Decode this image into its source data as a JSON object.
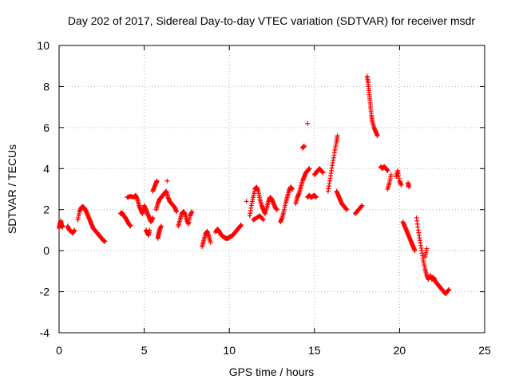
{
  "chart_data": {
    "type": "scatter",
    "title": "Day 202 of 2017, Sidereal Day-to-day VTEC variation (SDTVAR) for receiver msdr",
    "xlabel": "GPS time / hours",
    "ylabel": "SDTVAR / TECUs",
    "xlim": [
      0,
      25
    ],
    "ylim": [
      -4,
      10
    ],
    "xticks": [
      0,
      5,
      10,
      15,
      20,
      25
    ],
    "yticks": [
      -4,
      -2,
      0,
      2,
      4,
      6,
      8,
      10
    ],
    "xtick_labels": [
      "0",
      "5",
      "10",
      "15",
      "20",
      "25"
    ],
    "ytick_labels": [
      "-4",
      "-2",
      "0",
      "2",
      "4",
      "6",
      "8",
      "10"
    ],
    "grid": true,
    "marker": "+",
    "series_color": "#ff0000",
    "segments": [
      {
        "name": "seg1",
        "points": [
          [
            0.0,
            1.1
          ],
          [
            0.05,
            1.3
          ],
          [
            0.1,
            1.45
          ],
          [
            0.15,
            1.25
          ],
          [
            0.2,
            1.15
          ]
        ]
      },
      {
        "name": "seg2",
        "points": [
          [
            0.5,
            1.2
          ],
          [
            0.6,
            1.0
          ],
          [
            0.7,
            0.95
          ],
          [
            0.8,
            0.85
          ],
          [
            0.9,
            1.0
          ]
        ]
      },
      {
        "name": "seg3",
        "points": [
          [
            1.1,
            1.5
          ],
          [
            1.2,
            1.9
          ],
          [
            1.3,
            2.1
          ],
          [
            1.4,
            2.15
          ],
          [
            1.5,
            2.05
          ],
          [
            1.6,
            1.9
          ],
          [
            1.7,
            1.7
          ],
          [
            1.8,
            1.5
          ],
          [
            1.9,
            1.3
          ],
          [
            2.0,
            1.1
          ],
          [
            2.1,
            1.0
          ],
          [
            2.2,
            0.9
          ],
          [
            2.3,
            0.8
          ],
          [
            2.4,
            0.7
          ],
          [
            2.5,
            0.6
          ],
          [
            2.6,
            0.5
          ],
          [
            2.7,
            0.45
          ]
        ]
      },
      {
        "name": "seg4",
        "points": [
          [
            3.6,
            1.8
          ],
          [
            3.7,
            1.85
          ],
          [
            3.8,
            1.7
          ],
          [
            3.9,
            1.6
          ],
          [
            4.0,
            1.45
          ],
          [
            4.1,
            1.3
          ],
          [
            4.2,
            1.2
          ]
        ]
      },
      {
        "name": "seg5",
        "points": [
          [
            4.0,
            2.6
          ],
          [
            4.2,
            2.65
          ],
          [
            4.4,
            2.6
          ],
          [
            4.5,
            2.7
          ],
          [
            4.6,
            2.5
          ],
          [
            4.7,
            2.2
          ],
          [
            4.8,
            2.0
          ],
          [
            4.9,
            1.8
          ],
          [
            5.0,
            2.2
          ],
          [
            5.1,
            2.0
          ],
          [
            5.2,
            1.8
          ],
          [
            5.3,
            1.6
          ],
          [
            5.4,
            1.4
          ],
          [
            5.5,
            1.6
          ]
        ]
      },
      {
        "name": "seg6",
        "points": [
          [
            5.1,
            1.0
          ],
          [
            5.2,
            0.85
          ],
          [
            5.25,
            0.75
          ],
          [
            5.3,
            1.0
          ]
        ]
      },
      {
        "name": "seg7",
        "points": [
          [
            5.5,
            2.9
          ],
          [
            5.6,
            3.1
          ],
          [
            5.7,
            3.3
          ],
          [
            5.75,
            3.4
          ]
        ]
      },
      {
        "name": "seg8",
        "points": [
          [
            5.8,
            0.6
          ],
          [
            5.85,
            0.8
          ],
          [
            5.9,
            1.0
          ],
          [
            6.0,
            1.2
          ]
        ]
      },
      {
        "name": "seg9",
        "points": [
          [
            5.7,
            2.0
          ],
          [
            5.8,
            2.3
          ],
          [
            5.9,
            2.5
          ],
          [
            6.0,
            2.6
          ],
          [
            6.1,
            2.7
          ],
          [
            6.2,
            2.8
          ],
          [
            6.3,
            2.9
          ],
          [
            6.4,
            2.6
          ],
          [
            6.5,
            2.4
          ],
          [
            6.6,
            2.3
          ],
          [
            6.7,
            2.2
          ],
          [
            6.8,
            2.1
          ],
          [
            6.9,
            1.9
          ]
        ]
      },
      {
        "name": "seg10",
        "points": [
          [
            6.35,
            3.4
          ]
        ]
      },
      {
        "name": "seg11",
        "points": [
          [
            7.0,
            1.2
          ],
          [
            7.1,
            1.5
          ],
          [
            7.2,
            1.8
          ],
          [
            7.3,
            1.9
          ],
          [
            7.4,
            1.8
          ],
          [
            7.5,
            1.5
          ],
          [
            7.6,
            1.3
          ],
          [
            7.7,
            1.7
          ],
          [
            7.8,
            1.9
          ]
        ]
      },
      {
        "name": "seg12",
        "points": [
          [
            8.4,
            0.2
          ],
          [
            8.5,
            0.5
          ],
          [
            8.6,
            0.8
          ],
          [
            8.7,
            0.95
          ],
          [
            8.8,
            0.7
          ],
          [
            8.9,
            0.4
          ]
        ]
      },
      {
        "name": "seg13",
        "points": [
          [
            9.2,
            0.9
          ],
          [
            9.3,
            1.05
          ],
          [
            9.4,
            0.95
          ],
          [
            9.5,
            0.8
          ],
          [
            9.6,
            0.7
          ],
          [
            9.7,
            0.65
          ],
          [
            9.8,
            0.6
          ],
          [
            9.9,
            0.6
          ],
          [
            10.0,
            0.65
          ],
          [
            10.1,
            0.7
          ],
          [
            10.2,
            0.75
          ],
          [
            10.3,
            0.85
          ],
          [
            10.4,
            0.95
          ],
          [
            10.5,
            1.05
          ],
          [
            10.6,
            1.15
          ],
          [
            10.7,
            1.25
          ]
        ]
      },
      {
        "name": "seg14",
        "points": [
          [
            11.0,
            2.4
          ]
        ]
      },
      {
        "name": "seg15",
        "points": [
          [
            11.2,
            1.7
          ],
          [
            11.3,
            2.2
          ],
          [
            11.4,
            2.6
          ],
          [
            11.5,
            3.0
          ],
          [
            11.6,
            3.1
          ],
          [
            11.7,
            2.9
          ],
          [
            11.8,
            2.5
          ],
          [
            11.9,
            2.2
          ],
          [
            12.0,
            2.0
          ],
          [
            12.1,
            1.8
          ],
          [
            12.2,
            2.1
          ],
          [
            12.3,
            2.4
          ],
          [
            12.4,
            2.6
          ],
          [
            12.5,
            2.5
          ],
          [
            12.6,
            2.3
          ],
          [
            12.7,
            2.1
          ],
          [
            12.8,
            2.0
          ]
        ]
      },
      {
        "name": "seg16",
        "points": [
          [
            11.4,
            1.5
          ],
          [
            11.6,
            1.6
          ],
          [
            11.8,
            1.7
          ],
          [
            12.0,
            1.5
          ]
        ]
      },
      {
        "name": "seg17",
        "points": [
          [
            13.0,
            1.4
          ],
          [
            13.1,
            1.6
          ],
          [
            13.2,
            1.9
          ],
          [
            13.3,
            2.3
          ],
          [
            13.4,
            2.6
          ],
          [
            13.5,
            2.9
          ],
          [
            13.6,
            3.1
          ],
          [
            13.7,
            3.0
          ]
        ]
      },
      {
        "name": "seg18",
        "points": [
          [
            13.9,
            2.3
          ],
          [
            14.0,
            2.6
          ],
          [
            14.1,
            2.8
          ],
          [
            14.2,
            3.1
          ],
          [
            14.3,
            3.4
          ],
          [
            14.4,
            3.6
          ],
          [
            14.5,
            3.8
          ],
          [
            14.6,
            3.9
          ],
          [
            14.7,
            4.0
          ]
        ]
      },
      {
        "name": "seg19",
        "points": [
          [
            14.3,
            5.0
          ],
          [
            14.4,
            5.1
          ]
        ]
      },
      {
        "name": "seg20",
        "points": [
          [
            14.6,
            6.2
          ]
        ]
      },
      {
        "name": "seg21",
        "points": [
          [
            14.6,
            2.6
          ],
          [
            14.7,
            2.7
          ],
          [
            14.8,
            2.6
          ],
          [
            14.9,
            2.65
          ],
          [
            15.0,
            2.7
          ],
          [
            15.1,
            2.6
          ]
        ]
      },
      {
        "name": "seg22",
        "points": [
          [
            15.0,
            3.7
          ],
          [
            15.1,
            3.8
          ],
          [
            15.2,
            3.9
          ],
          [
            15.3,
            4.0
          ],
          [
            15.4,
            3.9
          ],
          [
            15.5,
            3.8
          ]
        ]
      },
      {
        "name": "seg23",
        "points": [
          [
            15.8,
            2.9
          ],
          [
            15.9,
            3.4
          ],
          [
            16.0,
            3.9
          ],
          [
            16.1,
            4.4
          ],
          [
            16.2,
            4.9
          ],
          [
            16.3,
            5.3
          ],
          [
            16.35,
            5.6
          ]
        ]
      },
      {
        "name": "seg24",
        "points": [
          [
            16.3,
            2.9
          ],
          [
            16.4,
            2.7
          ],
          [
            16.5,
            2.5
          ],
          [
            16.6,
            2.3
          ],
          [
            16.7,
            2.2
          ],
          [
            16.8,
            2.1
          ],
          [
            16.9,
            2.0
          ]
        ]
      },
      {
        "name": "seg25",
        "points": [
          [
            17.4,
            1.8
          ],
          [
            17.5,
            1.9
          ],
          [
            17.6,
            2.0
          ],
          [
            17.7,
            2.1
          ],
          [
            17.8,
            2.2
          ]
        ]
      },
      {
        "name": "seg26",
        "points": [
          [
            18.1,
            8.5
          ],
          [
            18.15,
            8.2
          ],
          [
            18.2,
            7.8
          ],
          [
            18.25,
            7.4
          ],
          [
            18.3,
            7.0
          ],
          [
            18.35,
            6.6
          ],
          [
            18.4,
            6.3
          ],
          [
            18.5,
            6.0
          ],
          [
            18.6,
            5.8
          ],
          [
            18.7,
            5.6
          ]
        ]
      },
      {
        "name": "seg27",
        "points": [
          [
            18.9,
            4.1
          ],
          [
            19.0,
            4.0
          ],
          [
            19.1,
            4.1
          ],
          [
            19.2,
            4.0
          ],
          [
            19.3,
            3.9
          ]
        ]
      },
      {
        "name": "seg28",
        "points": [
          [
            19.3,
            3.0
          ],
          [
            19.4,
            3.3
          ],
          [
            19.5,
            3.7
          ]
        ]
      },
      {
        "name": "seg29",
        "points": [
          [
            19.8,
            3.6
          ],
          [
            19.9,
            3.9
          ],
          [
            20.0,
            3.4
          ],
          [
            20.1,
            3.2
          ]
        ]
      },
      {
        "name": "seg30",
        "points": [
          [
            20.5,
            3.3
          ],
          [
            20.55,
            3.1
          ]
        ]
      },
      {
        "name": "seg31",
        "points": [
          [
            20.2,
            1.4
          ],
          [
            20.3,
            1.2
          ],
          [
            20.4,
            1.0
          ],
          [
            20.5,
            0.8
          ],
          [
            20.6,
            0.6
          ],
          [
            20.7,
            0.4
          ],
          [
            20.8,
            0.2
          ],
          [
            20.9,
            0.0
          ]
        ]
      },
      {
        "name": "seg32",
        "points": [
          [
            21.0,
            1.6
          ],
          [
            21.1,
            1.0
          ],
          [
            21.2,
            0.5
          ],
          [
            21.3,
            0.0
          ],
          [
            21.4,
            -0.5
          ],
          [
            21.5,
            -0.9
          ],
          [
            21.6,
            -1.2
          ],
          [
            21.7,
            -1.4
          ]
        ]
      },
      {
        "name": "seg33",
        "points": [
          [
            21.5,
            -0.3
          ],
          [
            21.6,
            0.1
          ]
        ]
      },
      {
        "name": "seg34",
        "points": [
          [
            21.8,
            -1.2
          ],
          [
            21.9,
            -1.4
          ],
          [
            22.0,
            -1.3
          ],
          [
            22.1,
            -1.5
          ],
          [
            22.2,
            -1.6
          ],
          [
            22.3,
            -1.7
          ],
          [
            22.4,
            -1.8
          ],
          [
            22.5,
            -1.9
          ],
          [
            22.6,
            -2.0
          ],
          [
            22.7,
            -2.1
          ],
          [
            22.8,
            -2.0
          ],
          [
            22.9,
            -1.9
          ]
        ]
      }
    ]
  }
}
